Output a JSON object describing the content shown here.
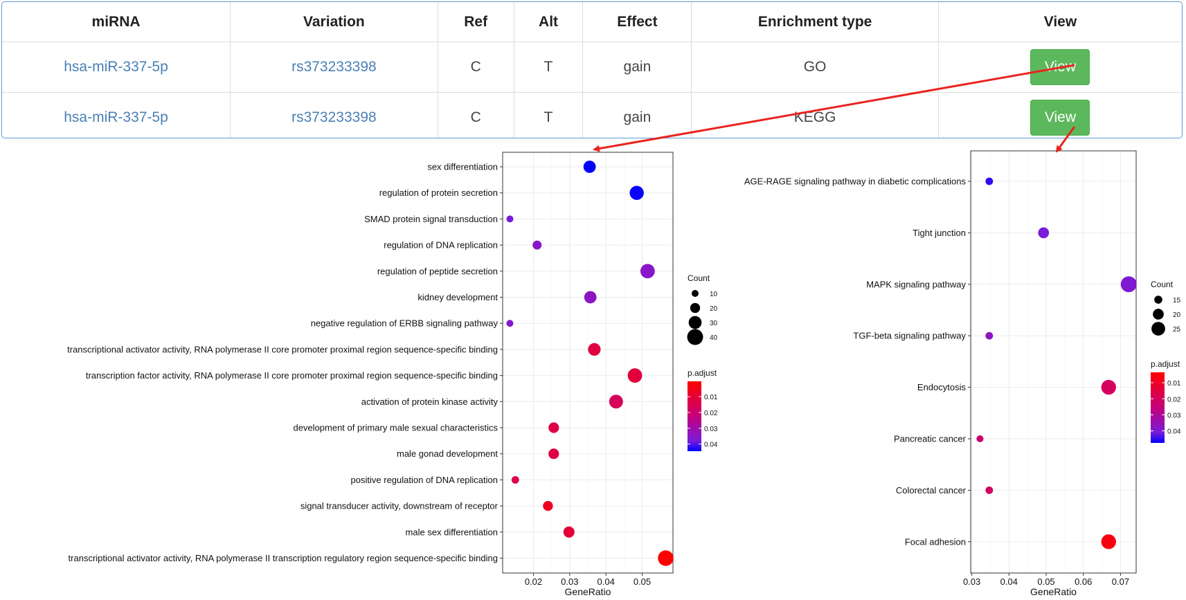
{
  "table": {
    "headers": [
      "miRNA",
      "Variation",
      "Ref",
      "Alt",
      "Effect",
      "Enrichment type",
      "View"
    ],
    "rows": [
      {
        "mirna": "hsa-miR-337-5p",
        "variation": "rs373233398",
        "ref": "C",
        "alt": "T",
        "effect": "gain",
        "type": "GO",
        "view": "View"
      },
      {
        "mirna": "hsa-miR-337-5p",
        "variation": "rs373233398",
        "ref": "C",
        "alt": "T",
        "effect": "gain",
        "type": "KEGG",
        "view": "View"
      }
    ]
  },
  "colors": {
    "button": "#5cb85c",
    "link": "#4a7fb5",
    "arrow": "#e8231e",
    "high": "#ff0000",
    "low": "#0000ff"
  },
  "chart_data": [
    {
      "type": "scatter",
      "xlabel": "GeneRatio",
      "xlim": [
        0.0115,
        0.0585
      ],
      "xticks": [
        0.02,
        0.03,
        0.04,
        0.05
      ],
      "xtick_labels": [
        "0.02",
        "0.03",
        "0.04",
        "0.05"
      ],
      "grid": true,
      "categories": [
        "sex differentiation",
        "regulation of protein secretion",
        "SMAD protein signal transduction",
        "regulation of DNA replication",
        "regulation of peptide secretion",
        "kidney development",
        "negative regulation of ERBB signaling pathway",
        "transcriptional activator activity, RNA polymerase II core promoter proximal region sequence-specific binding",
        "transcription factor activity, RNA polymerase II core promoter proximal region sequence-specific binding",
        "activation of protein kinase activity",
        "development of primary male sexual characteristics",
        "male gonad development",
        "positive regulation of DNA replication",
        "signal transducer activity, downstream of receptor",
        "male sex differentiation",
        "transcriptional activator activity, RNA polymerase II transcription regulatory region sequence-specific binding"
      ],
      "gene_ratio": [
        0.0355,
        0.0485,
        0.0135,
        0.021,
        0.0515,
        0.0357,
        0.0135,
        0.0368,
        0.048,
        0.0428,
        0.0256,
        0.0256,
        0.015,
        0.024,
        0.0298,
        0.0565
      ],
      "count": [
        28,
        34,
        10,
        17,
        35,
        28,
        10,
        29,
        35,
        33,
        22,
        22,
        12,
        20,
        24,
        39
      ],
      "p_adjust": [
        0.045,
        0.044,
        0.038,
        0.035,
        0.035,
        0.034,
        0.036,
        0.012,
        0.011,
        0.016,
        0.013,
        0.013,
        0.014,
        0.006,
        0.01,
        0.001
      ],
      "legend": {
        "count_title": "Count",
        "count_values": [
          10,
          20,
          30,
          40
        ],
        "count_labels": [
          "10",
          "20",
          "30",
          "40"
        ],
        "padj_title": "p.adjust",
        "padj_ticks": [
          0.01,
          0.02,
          0.03,
          0.04
        ],
        "padj_labels": [
          "0.01",
          "0.02",
          "0.03",
          "0.04"
        ],
        "padj_range": [
          0.0003,
          0.0445
        ],
        "count_range": [
          10,
          40
        ]
      }
    },
    {
      "type": "scatter",
      "xlabel": "GeneRatio",
      "xlim": [
        0.0297,
        0.0742
      ],
      "xticks": [
        0.03,
        0.04,
        0.05,
        0.06,
        0.07
      ],
      "xtick_labels": [
        "0.03",
        "0.04",
        "0.05",
        "0.06",
        "0.07"
      ],
      "grid": true,
      "categories": [
        "AGE-RAGE signaling pathway in diabetic complications",
        "Tight junction",
        "MAPK signaling pathway",
        "TGF-beta signaling pathway",
        "Endocytosis",
        "Pancreatic cancer",
        "Colorectal cancer",
        "Focal adhesion"
      ],
      "gene_ratio": [
        0.0347,
        0.0493,
        0.0722,
        0.0347,
        0.0668,
        0.0322,
        0.0347,
        0.0668
      ],
      "count": [
        14,
        20,
        29,
        14,
        27,
        13,
        14,
        27
      ],
      "p_adjust": [
        0.045,
        0.041,
        0.04,
        0.037,
        0.02,
        0.023,
        0.021,
        0.006
      ],
      "legend": {
        "count_title": "Count",
        "count_values": [
          15,
          20,
          25
        ],
        "count_labels": [
          "15",
          "20",
          "25"
        ],
        "padj_title": "p.adjust",
        "padj_ticks": [
          0.01,
          0.02,
          0.03,
          0.04
        ],
        "padj_labels": [
          "0.01",
          "0.02",
          "0.03",
          "0.04"
        ],
        "padj_range": [
          0.0035,
          0.0475
        ],
        "count_range": [
          13,
          29
        ]
      }
    }
  ]
}
